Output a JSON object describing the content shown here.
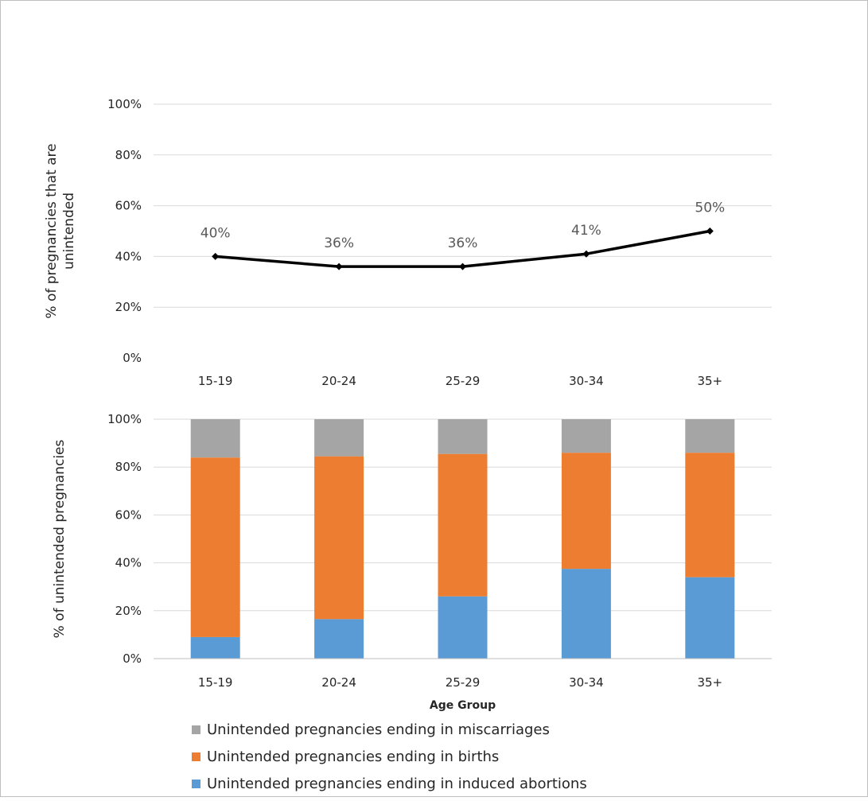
{
  "chart_data": [
    {
      "type": "line",
      "categories": [
        "15-19",
        "20-24",
        "25-29",
        "30-34",
        "35+"
      ],
      "series": [
        {
          "values": [
            40,
            36,
            36,
            41,
            50
          ]
        }
      ],
      "data_labels": [
        "40%",
        "36%",
        "36%",
        "41%",
        "50%"
      ],
      "ylabel": "% of pregnancies that are unintended",
      "yticks": [
        "0%",
        "20%",
        "40%",
        "60%",
        "80%",
        "100%"
      ],
      "ylim": [
        0,
        100
      ],
      "grid": true,
      "line_color": "#000000"
    },
    {
      "type": "bar",
      "stacked": true,
      "categories": [
        "15-19",
        "20-24",
        "25-29",
        "30-34",
        "35+"
      ],
      "series": [
        {
          "name": "Unintended pregnancies ending in induced abortions",
          "color": "#5b9bd5",
          "values": [
            9,
            16.5,
            26,
            37.5,
            34
          ]
        },
        {
          "name": "Unintended pregnancies ending in births",
          "color": "#ed7d31",
          "values": [
            75,
            68,
            59.5,
            48.5,
            52
          ]
        },
        {
          "name": "Unintended pregnancies ending in miscarriages",
          "color": "#a5a5a5",
          "values": [
            16,
            15.5,
            14.5,
            14,
            14
          ]
        }
      ],
      "xlabel": "Age Group",
      "ylabel": "% of unintended pregnancies",
      "yticks": [
        "0%",
        "20%",
        "40%",
        "60%",
        "80%",
        "100%"
      ],
      "ylim": [
        0,
        100
      ],
      "grid": true,
      "legend_placement": "bottom",
      "legend_order": [
        "Unintended pregnancies ending in miscarriages",
        "Unintended pregnancies ending in births",
        "Unintended pregnancies ending in induced abortions"
      ]
    }
  ]
}
